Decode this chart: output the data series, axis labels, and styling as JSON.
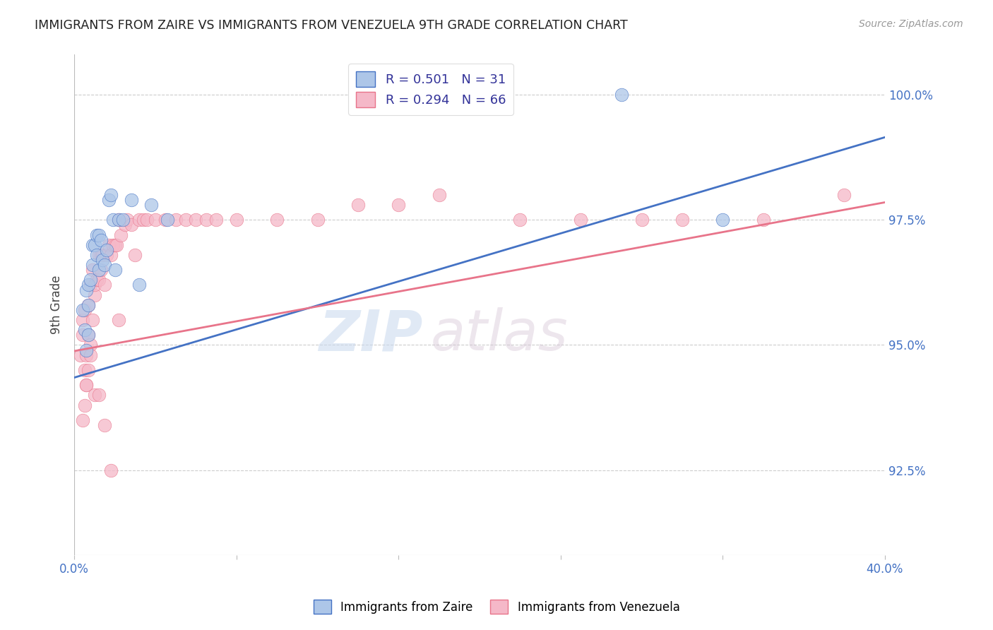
{
  "title": "IMMIGRANTS FROM ZAIRE VS IMMIGRANTS FROM VENEZUELA 9TH GRADE CORRELATION CHART",
  "source": "Source: ZipAtlas.com",
  "ylabel": "9th Grade",
  "xlim": [
    0.0,
    0.4
  ],
  "ylim": [
    0.908,
    1.008
  ],
  "yticks": [
    0.925,
    0.95,
    0.975,
    1.0
  ],
  "ytick_labels": [
    "92.5%",
    "95.0%",
    "97.5%",
    "100.0%"
  ],
  "xticks": [
    0.0,
    0.08,
    0.16,
    0.24,
    0.32,
    0.4
  ],
  "xtick_labels": [
    "0.0%",
    "",
    "",
    "",
    "",
    "40.0%"
  ],
  "legend_R1": "R = 0.501",
  "legend_N1": "N = 31",
  "legend_R2": "R = 0.294",
  "legend_N2": "N = 66",
  "color_zaire": "#adc6e8",
  "color_venezuela": "#f5b8c8",
  "line_color_zaire": "#4472c4",
  "line_color_venezuela": "#e8748a",
  "watermark_zip": "ZIP",
  "watermark_atlas": "atlas",
  "background_color": "#ffffff",
  "zaire_x": [
    0.004,
    0.005,
    0.006,
    0.006,
    0.007,
    0.007,
    0.007,
    0.008,
    0.009,
    0.009,
    0.01,
    0.011,
    0.011,
    0.012,
    0.012,
    0.013,
    0.014,
    0.015,
    0.016,
    0.017,
    0.018,
    0.019,
    0.02,
    0.022,
    0.024,
    0.028,
    0.032,
    0.038,
    0.046,
    0.27,
    0.32
  ],
  "zaire_y": [
    0.957,
    0.953,
    0.961,
    0.949,
    0.962,
    0.958,
    0.952,
    0.963,
    0.97,
    0.966,
    0.97,
    0.972,
    0.968,
    0.972,
    0.965,
    0.971,
    0.967,
    0.966,
    0.969,
    0.979,
    0.98,
    0.975,
    0.965,
    0.975,
    0.975,
    0.979,
    0.962,
    0.978,
    0.975,
    1.0,
    0.975
  ],
  "venezuela_x": [
    0.003,
    0.004,
    0.004,
    0.005,
    0.005,
    0.006,
    0.006,
    0.007,
    0.007,
    0.008,
    0.008,
    0.009,
    0.009,
    0.01,
    0.01,
    0.011,
    0.012,
    0.012,
    0.013,
    0.013,
    0.014,
    0.015,
    0.016,
    0.017,
    0.018,
    0.019,
    0.02,
    0.021,
    0.022,
    0.023,
    0.025,
    0.026,
    0.028,
    0.03,
    0.032,
    0.034,
    0.036,
    0.04,
    0.045,
    0.05,
    0.055,
    0.06,
    0.065,
    0.07,
    0.08,
    0.1,
    0.12,
    0.14,
    0.16,
    0.18,
    0.22,
    0.25,
    0.28,
    0.3,
    0.34,
    0.38,
    0.004,
    0.005,
    0.006,
    0.007,
    0.008,
    0.01,
    0.012,
    0.015,
    0.018,
    0.022
  ],
  "venezuela_y": [
    0.948,
    0.955,
    0.952,
    0.945,
    0.957,
    0.948,
    0.942,
    0.952,
    0.958,
    0.95,
    0.962,
    0.955,
    0.965,
    0.96,
    0.962,
    0.963,
    0.963,
    0.968,
    0.965,
    0.968,
    0.968,
    0.962,
    0.968,
    0.97,
    0.968,
    0.97,
    0.97,
    0.97,
    0.975,
    0.972,
    0.974,
    0.975,
    0.974,
    0.968,
    0.975,
    0.975,
    0.975,
    0.975,
    0.975,
    0.975,
    0.975,
    0.975,
    0.975,
    0.975,
    0.975,
    0.975,
    0.975,
    0.978,
    0.978,
    0.98,
    0.975,
    0.975,
    0.975,
    0.975,
    0.975,
    0.98,
    0.935,
    0.938,
    0.942,
    0.945,
    0.948,
    0.94,
    0.94,
    0.934,
    0.925,
    0.955
  ],
  "trend_zaire_x0": 0.0,
  "trend_zaire_y0": 0.9435,
  "trend_zaire_x1": 0.4,
  "trend_zaire_y1": 0.9915,
  "trend_venezuela_x0": 0.0,
  "trend_venezuela_y0": 0.9488,
  "trend_venezuela_x1": 0.4,
  "trend_venezuela_y1": 0.9785
}
